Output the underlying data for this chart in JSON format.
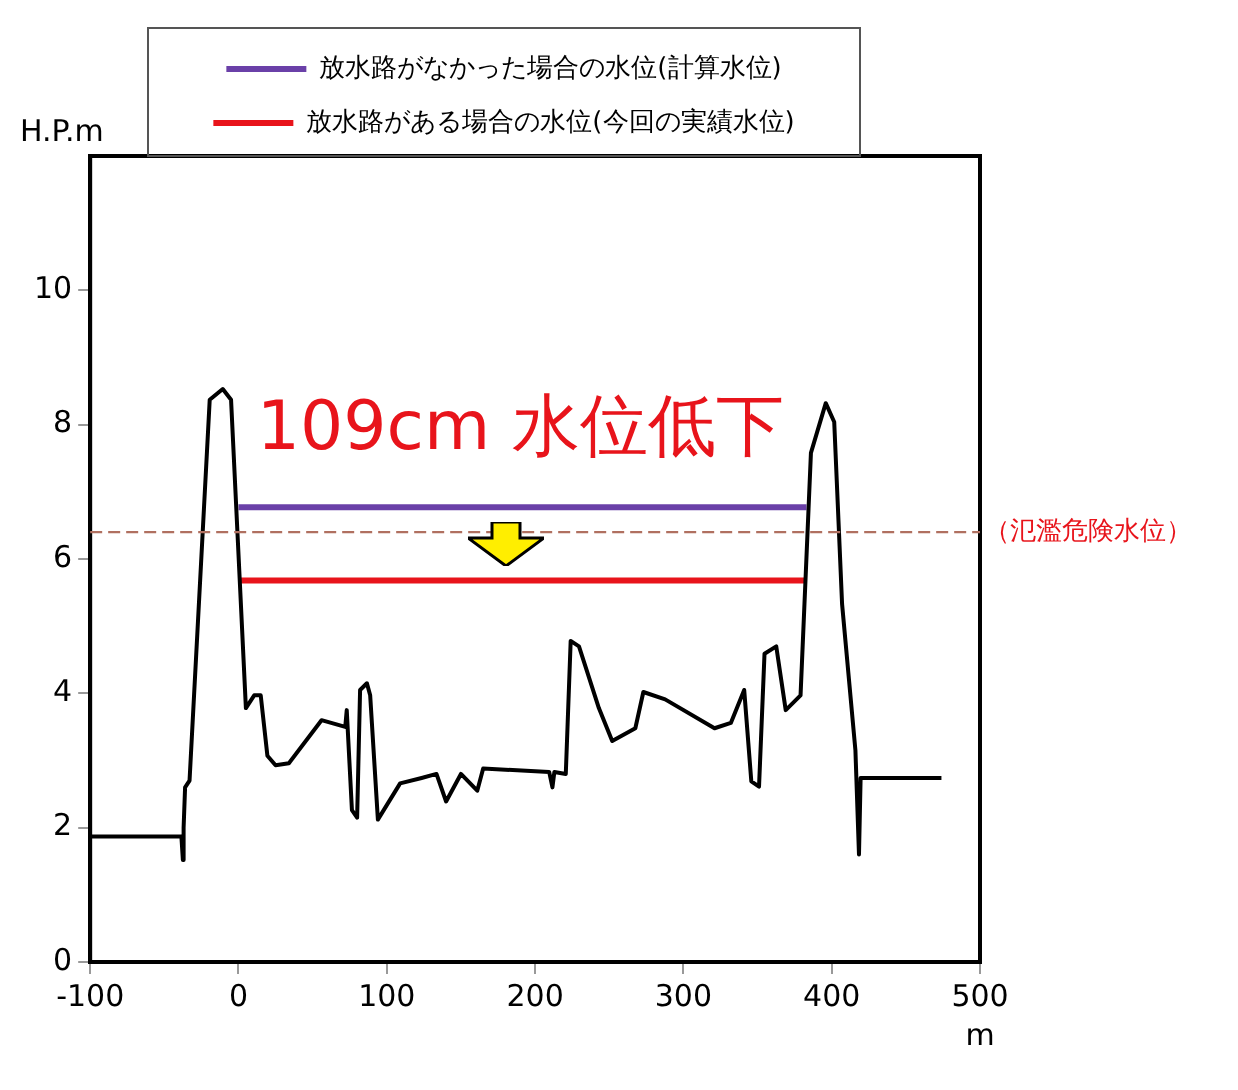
{
  "chart_data": {
    "type": "line",
    "xlabel": "m",
    "ylabel": "H.P.m",
    "xlim": [
      -100,
      500
    ],
    "xticks": [
      -100,
      0,
      100,
      200,
      300,
      400,
      500
    ],
    "ylim": [
      0,
      12
    ],
    "yticks": [
      0,
      2,
      4,
      6,
      8,
      10
    ],
    "grid": false,
    "legend": "top",
    "marker": "none",
    "series": [
      {
        "color": "#000000",
        "x": [
          -100,
          -38.5,
          -37.5,
          -37,
          -36,
          -33,
          -19.4,
          -10.6,
          -5,
          5,
          10.6,
          15,
          19.5,
          25,
          34,
          56,
          72,
          73,
          76.5,
          80,
          82,
          86.6,
          88.8,
          94,
          109,
          123.5,
          133.5,
          140,
          150,
          161,
          165,
          209.5,
          211.7,
          213,
          220.7,
          224,
          229.6,
          243,
          252,
          267.6,
          273,
          287.7,
          321,
          332,
          341,
          345.8,
          351,
          354.7,
          362.6,
          369,
          379,
          386,
          396,
          401.7,
          407,
          416,
          418.4,
          419.5,
          474
        ],
        "values": [
          1.87,
          1.87,
          1.52,
          2.0,
          2.6,
          2.7,
          8.37,
          8.53,
          8.37,
          3.78,
          3.97,
          3.97,
          3.07,
          2.93,
          2.96,
          3.6,
          3.5,
          3.75,
          2.26,
          2.15,
          4.05,
          4.15,
          3.97,
          2.12,
          2.66,
          2.74,
          2.8,
          2.39,
          2.8,
          2.55,
          2.88,
          2.83,
          2.6,
          2.83,
          2.8,
          4.78,
          4.7,
          3.78,
          3.29,
          3.48,
          4.02,
          3.91,
          3.48,
          3.56,
          4.05,
          2.69,
          2.61,
          4.59,
          4.7,
          3.75,
          3.97,
          7.58,
          8.32,
          8.04,
          5.33,
          3.15,
          1.6,
          2.74,
          2.74
        ]
      },
      {
        "name": "放水路がなかった場合の水位(計算水位)",
        "color": "#6a40a8",
        "x": [
          0,
          383
        ],
        "values": [
          6.77,
          6.77
        ]
      },
      {
        "name": "放水路がある場合の水位(今回の実績水位)",
        "color": "#e8141b",
        "x": [
          0,
          383
        ],
        "values": [
          5.68,
          5.68
        ]
      }
    ],
    "ref_lines": [
      {
        "axis": "y",
        "value": 6.4,
        "label": "（氾濫危険水位）",
        "color": "#b07060",
        "line_style": "dashed"
      }
    ],
    "annotations": [
      "109cm 水位低下"
    ]
  }
}
